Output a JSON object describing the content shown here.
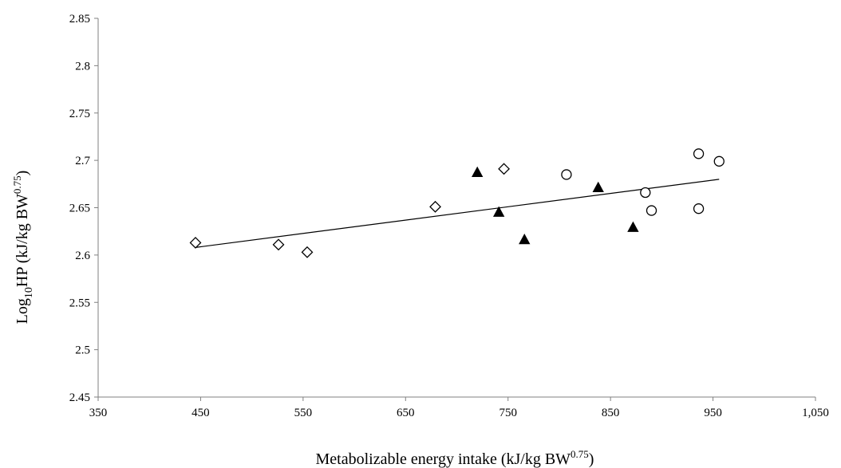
{
  "chart_data": {
    "type": "scatter",
    "title": "",
    "xlabel": {
      "main": "Metabolizable energy intake (kJ/kg BW",
      "sup": "0.75",
      "tail": ")"
    },
    "ylabel": {
      "pre": "Log",
      "sub": "10",
      "mid": "HP (kJ/kg BW",
      "sup": "0.75",
      "tail": ")"
    },
    "xlim": [
      350,
      1050
    ],
    "ylim": [
      2.45,
      2.85
    ],
    "xticks": [
      350,
      450,
      550,
      650,
      750,
      850,
      950,
      1050
    ],
    "xtick_labels": [
      "350",
      "450",
      "550",
      "650",
      "750",
      "850",
      "950",
      "1,050"
    ],
    "yticks": [
      2.45,
      2.5,
      2.55,
      2.6,
      2.65,
      2.7,
      2.75,
      2.8,
      2.85
    ],
    "ytick_labels": [
      "2.45",
      "2.5",
      "2.55",
      "2.6",
      "2.65",
      "2.7",
      "2.75",
      "2.8",
      "2.85"
    ],
    "grid": false,
    "legend": "none",
    "series": [
      {
        "marker": "diamond-open",
        "points": [
          {
            "x": 445,
            "y": 2.613
          },
          {
            "x": 526,
            "y": 2.611
          },
          {
            "x": 554,
            "y": 2.603
          },
          {
            "x": 679,
            "y": 2.651
          },
          {
            "x": 746,
            "y": 2.691
          }
        ]
      },
      {
        "marker": "triangle-filled",
        "points": [
          {
            "x": 720,
            "y": 2.687
          },
          {
            "x": 741,
            "y": 2.645
          },
          {
            "x": 766,
            "y": 2.616
          },
          {
            "x": 838,
            "y": 2.671
          },
          {
            "x": 872,
            "y": 2.629
          }
        ]
      },
      {
        "marker": "circle-open",
        "points": [
          {
            "x": 807,
            "y": 2.685
          },
          {
            "x": 884,
            "y": 2.666
          },
          {
            "x": 890,
            "y": 2.647
          },
          {
            "x": 936,
            "y": 2.707
          },
          {
            "x": 936,
            "y": 2.649
          },
          {
            "x": 956,
            "y": 2.699
          }
        ]
      }
    ],
    "trendline": {
      "type": "linear",
      "x0": 445,
      "y0": 2.608,
      "x1": 956,
      "y1": 2.68
    },
    "colors": {
      "marker_stroke": "#000000",
      "axis": "#808080",
      "line": "#000000"
    }
  }
}
